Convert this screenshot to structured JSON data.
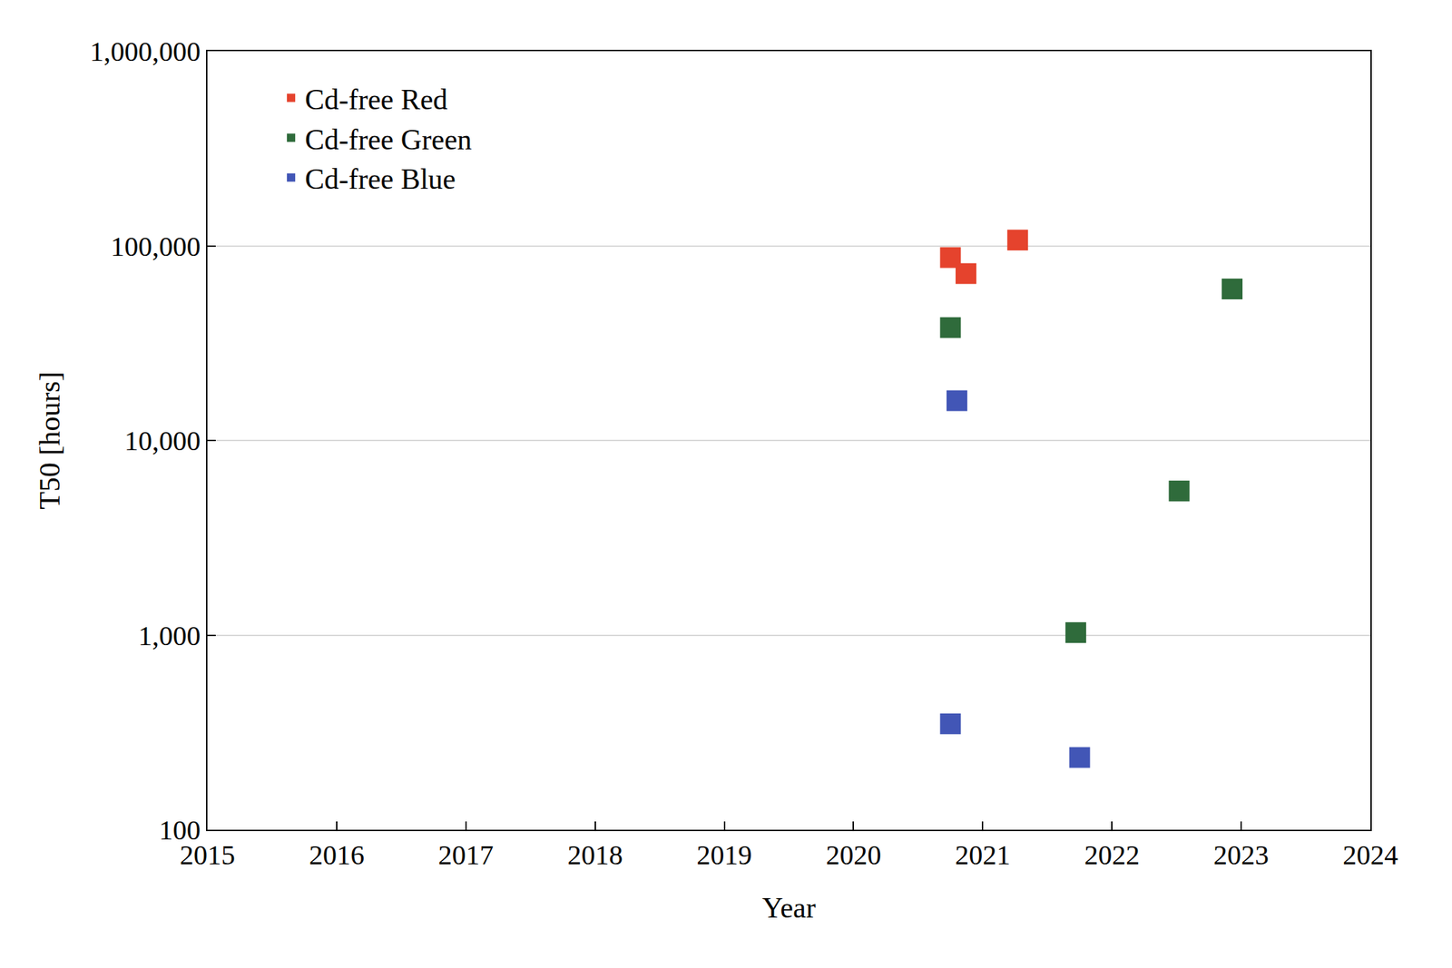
{
  "chart_data": {
    "type": "scatter",
    "x_label": "Year",
    "y_label": "T50 [hours]",
    "log": "y",
    "grid": "y",
    "legend": "top-left",
    "marker": "square",
    "xlim": [
      2015,
      2024
    ],
    "xticks": [
      2015,
      2016,
      2017,
      2018,
      2019,
      2020,
      2021,
      2022,
      2023,
      2024
    ],
    "ylim": [
      100,
      1000000
    ],
    "yticks": [
      100,
      {
        "value": 1000,
        "label": "1,000"
      },
      {
        "value": 10000,
        "label": "10,000"
      },
      {
        "value": 100000,
        "label": "100,000"
      },
      {
        "value": 1000000,
        "label": "1,000,000"
      }
    ],
    "series": [
      {
        "name": "Cd-free Red",
        "color": "#e5432d",
        "x": [
          2020.75,
          2020.87,
          2021.27
        ],
        "values": [
          87000,
          72000,
          107000
        ]
      },
      {
        "name": "Cd-free Green",
        "color": "#2f6b3b",
        "x": [
          2020.75,
          2021.72,
          2022.52,
          2022.93
        ],
        "values": [
          38000,
          1030,
          5500,
          60000
        ]
      },
      {
        "name": "Cd-free Blue",
        "color": "#4256b6",
        "x": [
          2020.8,
          2020.75,
          2021.75
        ],
        "values": [
          16000,
          350,
          235
        ]
      }
    ]
  }
}
